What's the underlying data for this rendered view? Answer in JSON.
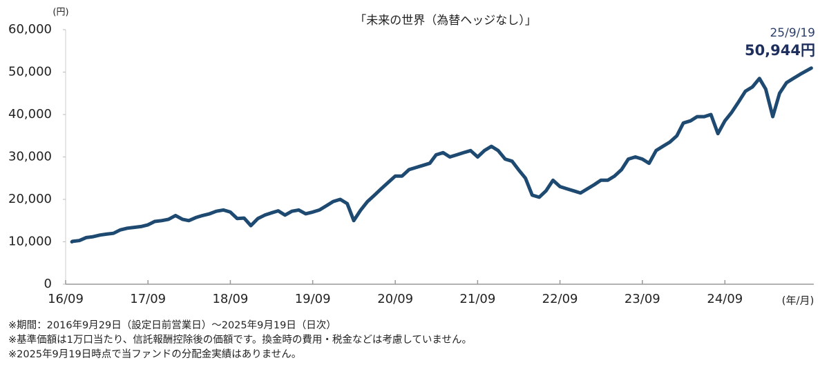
{
  "chart_data": {
    "type": "line",
    "title": "「未来の世界（為替ヘッジなし）」",
    "y_unit": "(円)",
    "x_unit": "(年/月)",
    "end_date_label": "25/9/19",
    "end_value_label": "50,944円",
    "x": [
      "2016-09-29",
      "2016-10",
      "2016-11",
      "2016-12",
      "2017-01",
      "2017-02",
      "2017-03",
      "2017-04",
      "2017-05",
      "2017-06",
      "2017-07",
      "2017-08",
      "2017-09",
      "2017-10",
      "2017-11",
      "2017-12",
      "2018-01",
      "2018-02",
      "2018-03",
      "2018-04",
      "2018-05",
      "2018-06",
      "2018-07",
      "2018-08",
      "2018-09",
      "2018-10",
      "2018-11",
      "2018-12",
      "2019-01",
      "2019-02",
      "2019-03",
      "2019-04",
      "2019-05",
      "2019-06",
      "2019-07",
      "2019-08",
      "2019-09",
      "2019-10",
      "2019-11",
      "2019-12",
      "2020-01",
      "2020-02",
      "2020-03",
      "2020-04",
      "2020-05",
      "2020-06",
      "2020-07",
      "2020-08",
      "2020-09",
      "2020-10",
      "2020-11",
      "2020-12",
      "2021-01",
      "2021-02",
      "2021-03",
      "2021-04",
      "2021-05",
      "2021-06",
      "2021-07",
      "2021-08",
      "2021-09",
      "2021-10",
      "2021-11",
      "2021-12",
      "2022-01",
      "2022-02",
      "2022-03",
      "2022-04",
      "2022-05",
      "2022-06",
      "2022-07",
      "2022-08",
      "2022-09",
      "2022-10",
      "2022-11",
      "2022-12",
      "2023-01",
      "2023-02",
      "2023-03",
      "2023-04",
      "2023-05",
      "2023-06",
      "2023-07",
      "2023-08",
      "2023-09",
      "2023-10",
      "2023-11",
      "2023-12",
      "2024-01",
      "2024-02",
      "2024-03",
      "2024-04",
      "2024-05",
      "2024-06",
      "2024-07",
      "2024-08",
      "2024-09",
      "2024-10",
      "2024-11",
      "2024-12",
      "2025-01",
      "2025-02",
      "2025-03",
      "2025-04",
      "2025-05",
      "2025-06",
      "2025-07",
      "2025-08",
      "2025-09-19"
    ],
    "series": [
      {
        "name": "未来の世界（為替ヘッジなし）",
        "color": "#1e4a72",
        "values": [
          10000,
          10100,
          10300,
          11000,
          11200,
          11600,
          11800,
          12000,
          12800,
          13200,
          13400,
          13600,
          14000,
          14800,
          15000,
          15300,
          16200,
          15300,
          15000,
          15700,
          16200,
          16600,
          17200,
          17500,
          17000,
          15500,
          15600,
          13800,
          15500,
          16300,
          16800,
          17300,
          16300,
          17200,
          17500,
          16600,
          17000,
          17500,
          18500,
          19500,
          20000,
          19000,
          15000,
          17500,
          19500,
          21000,
          22500,
          24000,
          25500,
          25500,
          27000,
          27500,
          28000,
          28500,
          30500,
          31000,
          30000,
          30500,
          31000,
          31500,
          30000,
          31500,
          32500,
          31500,
          29500,
          29000,
          27000,
          25000,
          21000,
          20500,
          22000,
          24500,
          23000,
          22500,
          22000,
          21500,
          22500,
          23500,
          24500,
          24500,
          25500,
          27000,
          29500,
          30000,
          29500,
          28500,
          31500,
          32500,
          33500,
          35000,
          38000,
          38500,
          39500,
          39500,
          40000,
          35500,
          38500,
          40500,
          43000,
          45500,
          46500,
          48500,
          46000,
          39500,
          45000,
          47500,
          48500,
          49500,
          50944
        ]
      }
    ],
    "xlim": [
      "2016-09",
      "2025-09-30"
    ],
    "xticks": [
      {
        "value": "2016-09",
        "label": "16/09"
      },
      {
        "value": "2017-09",
        "label": "17/09"
      },
      {
        "value": "2018-09",
        "label": "18/09"
      },
      {
        "value": "2019-09",
        "label": "19/09"
      },
      {
        "value": "2020-09",
        "label": "20/09"
      },
      {
        "value": "2021-09",
        "label": "21/09"
      },
      {
        "value": "2022-09",
        "label": "22/09"
      },
      {
        "value": "2023-09",
        "label": "23/09"
      },
      {
        "value": "2024-09",
        "label": "24/09"
      }
    ],
    "ylim": [
      0,
      60000
    ],
    "yticks": [
      0,
      {
        "value": 10000,
        "label": "10,000"
      },
      {
        "value": 20000,
        "label": "20,000"
      },
      {
        "value": 30000,
        "label": "30,000"
      },
      {
        "value": 40000,
        "label": "40,000"
      },
      {
        "value": 50000,
        "label": "50,000"
      },
      {
        "value": 60000,
        "label": "60,000"
      }
    ],
    "notes": [
      "※期間：2016年9月29日（設定日前営業日）～2025年9月19日（日次）",
      "※基準価額は1万口当たり、信託報酬控除後の価額です。換金時の費用・税金などは考慮していません。",
      "※2025年9月19日時点で当ファンドの分配金実績はありません。"
    ]
  }
}
